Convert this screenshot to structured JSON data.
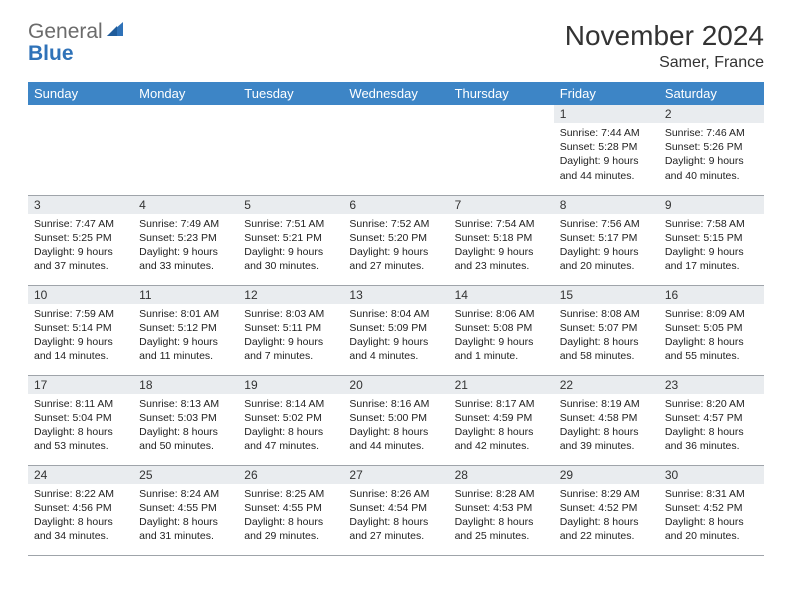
{
  "brand": {
    "word1": "General",
    "word2": "Blue"
  },
  "title": "November 2024",
  "location": "Samer, France",
  "colors": {
    "header_bg": "#3d85c6",
    "header_fg": "#ffffff",
    "daynum_bg": "#e9ecef",
    "rule": "#9fa4aa",
    "logo_gray": "#6b6b6b",
    "logo_blue": "#2f72b8"
  },
  "day_names": [
    "Sunday",
    "Monday",
    "Tuesday",
    "Wednesday",
    "Thursday",
    "Friday",
    "Saturday"
  ],
  "weeks": [
    [
      {
        "n": "",
        "sunrise": "",
        "sunset": "",
        "daylight": ""
      },
      {
        "n": "",
        "sunrise": "",
        "sunset": "",
        "daylight": ""
      },
      {
        "n": "",
        "sunrise": "",
        "sunset": "",
        "daylight": ""
      },
      {
        "n": "",
        "sunrise": "",
        "sunset": "",
        "daylight": ""
      },
      {
        "n": "",
        "sunrise": "",
        "sunset": "",
        "daylight": ""
      },
      {
        "n": "1",
        "sunrise": "Sunrise: 7:44 AM",
        "sunset": "Sunset: 5:28 PM",
        "daylight": "Daylight: 9 hours and 44 minutes."
      },
      {
        "n": "2",
        "sunrise": "Sunrise: 7:46 AM",
        "sunset": "Sunset: 5:26 PM",
        "daylight": "Daylight: 9 hours and 40 minutes."
      }
    ],
    [
      {
        "n": "3",
        "sunrise": "Sunrise: 7:47 AM",
        "sunset": "Sunset: 5:25 PM",
        "daylight": "Daylight: 9 hours and 37 minutes."
      },
      {
        "n": "4",
        "sunrise": "Sunrise: 7:49 AM",
        "sunset": "Sunset: 5:23 PM",
        "daylight": "Daylight: 9 hours and 33 minutes."
      },
      {
        "n": "5",
        "sunrise": "Sunrise: 7:51 AM",
        "sunset": "Sunset: 5:21 PM",
        "daylight": "Daylight: 9 hours and 30 minutes."
      },
      {
        "n": "6",
        "sunrise": "Sunrise: 7:52 AM",
        "sunset": "Sunset: 5:20 PM",
        "daylight": "Daylight: 9 hours and 27 minutes."
      },
      {
        "n": "7",
        "sunrise": "Sunrise: 7:54 AM",
        "sunset": "Sunset: 5:18 PM",
        "daylight": "Daylight: 9 hours and 23 minutes."
      },
      {
        "n": "8",
        "sunrise": "Sunrise: 7:56 AM",
        "sunset": "Sunset: 5:17 PM",
        "daylight": "Daylight: 9 hours and 20 minutes."
      },
      {
        "n": "9",
        "sunrise": "Sunrise: 7:58 AM",
        "sunset": "Sunset: 5:15 PM",
        "daylight": "Daylight: 9 hours and 17 minutes."
      }
    ],
    [
      {
        "n": "10",
        "sunrise": "Sunrise: 7:59 AM",
        "sunset": "Sunset: 5:14 PM",
        "daylight": "Daylight: 9 hours and 14 minutes."
      },
      {
        "n": "11",
        "sunrise": "Sunrise: 8:01 AM",
        "sunset": "Sunset: 5:12 PM",
        "daylight": "Daylight: 9 hours and 11 minutes."
      },
      {
        "n": "12",
        "sunrise": "Sunrise: 8:03 AM",
        "sunset": "Sunset: 5:11 PM",
        "daylight": "Daylight: 9 hours and 7 minutes."
      },
      {
        "n": "13",
        "sunrise": "Sunrise: 8:04 AM",
        "sunset": "Sunset: 5:09 PM",
        "daylight": "Daylight: 9 hours and 4 minutes."
      },
      {
        "n": "14",
        "sunrise": "Sunrise: 8:06 AM",
        "sunset": "Sunset: 5:08 PM",
        "daylight": "Daylight: 9 hours and 1 minute."
      },
      {
        "n": "15",
        "sunrise": "Sunrise: 8:08 AM",
        "sunset": "Sunset: 5:07 PM",
        "daylight": "Daylight: 8 hours and 58 minutes."
      },
      {
        "n": "16",
        "sunrise": "Sunrise: 8:09 AM",
        "sunset": "Sunset: 5:05 PM",
        "daylight": "Daylight: 8 hours and 55 minutes."
      }
    ],
    [
      {
        "n": "17",
        "sunrise": "Sunrise: 8:11 AM",
        "sunset": "Sunset: 5:04 PM",
        "daylight": "Daylight: 8 hours and 53 minutes."
      },
      {
        "n": "18",
        "sunrise": "Sunrise: 8:13 AM",
        "sunset": "Sunset: 5:03 PM",
        "daylight": "Daylight: 8 hours and 50 minutes."
      },
      {
        "n": "19",
        "sunrise": "Sunrise: 8:14 AM",
        "sunset": "Sunset: 5:02 PM",
        "daylight": "Daylight: 8 hours and 47 minutes."
      },
      {
        "n": "20",
        "sunrise": "Sunrise: 8:16 AM",
        "sunset": "Sunset: 5:00 PM",
        "daylight": "Daylight: 8 hours and 44 minutes."
      },
      {
        "n": "21",
        "sunrise": "Sunrise: 8:17 AM",
        "sunset": "Sunset: 4:59 PM",
        "daylight": "Daylight: 8 hours and 42 minutes."
      },
      {
        "n": "22",
        "sunrise": "Sunrise: 8:19 AM",
        "sunset": "Sunset: 4:58 PM",
        "daylight": "Daylight: 8 hours and 39 minutes."
      },
      {
        "n": "23",
        "sunrise": "Sunrise: 8:20 AM",
        "sunset": "Sunset: 4:57 PM",
        "daylight": "Daylight: 8 hours and 36 minutes."
      }
    ],
    [
      {
        "n": "24",
        "sunrise": "Sunrise: 8:22 AM",
        "sunset": "Sunset: 4:56 PM",
        "daylight": "Daylight: 8 hours and 34 minutes."
      },
      {
        "n": "25",
        "sunrise": "Sunrise: 8:24 AM",
        "sunset": "Sunset: 4:55 PM",
        "daylight": "Daylight: 8 hours and 31 minutes."
      },
      {
        "n": "26",
        "sunrise": "Sunrise: 8:25 AM",
        "sunset": "Sunset: 4:55 PM",
        "daylight": "Daylight: 8 hours and 29 minutes."
      },
      {
        "n": "27",
        "sunrise": "Sunrise: 8:26 AM",
        "sunset": "Sunset: 4:54 PM",
        "daylight": "Daylight: 8 hours and 27 minutes."
      },
      {
        "n": "28",
        "sunrise": "Sunrise: 8:28 AM",
        "sunset": "Sunset: 4:53 PM",
        "daylight": "Daylight: 8 hours and 25 minutes."
      },
      {
        "n": "29",
        "sunrise": "Sunrise: 8:29 AM",
        "sunset": "Sunset: 4:52 PM",
        "daylight": "Daylight: 8 hours and 22 minutes."
      },
      {
        "n": "30",
        "sunrise": "Sunrise: 8:31 AM",
        "sunset": "Sunset: 4:52 PM",
        "daylight": "Daylight: 8 hours and 20 minutes."
      }
    ]
  ]
}
